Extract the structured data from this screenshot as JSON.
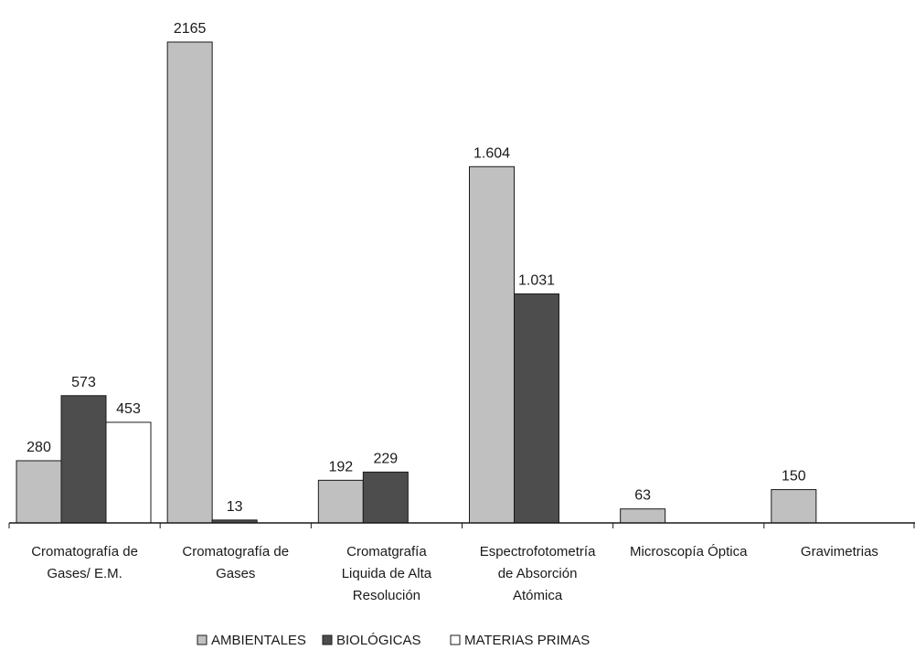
{
  "chart_data": {
    "type": "bar",
    "categories": [
      [
        "Cromatografía de",
        "Gases/ E.M."
      ],
      [
        "Cromatografía de",
        "Gases"
      ],
      [
        "Cromatgrafía",
        "Liquida de Alta",
        "Resolución"
      ],
      [
        "Espectrofotometría",
        "de Absorción",
        "Atómica"
      ],
      [
        "Microscopía Óptica"
      ],
      [
        "Gravimetrias"
      ]
    ],
    "series": [
      {
        "name": "AMBIENTALES",
        "color": "#c0c0c0",
        "values": [
          280,
          2165,
          192,
          1604,
          63,
          150
        ],
        "labels": [
          "280",
          "2165",
          "192",
          "1.604",
          "63",
          "150"
        ]
      },
      {
        "name": "BIOLÓGICAS",
        "color": "#4d4d4d",
        "values": [
          573,
          13,
          229,
          1031,
          null,
          null
        ],
        "labels": [
          "573",
          "13",
          "229",
          "1.031",
          "",
          ""
        ]
      },
      {
        "name": "MATERIAS PRIMAS",
        "color": "#ffffff",
        "values": [
          453,
          null,
          null,
          null,
          null,
          null
        ],
        "labels": [
          "453",
          "",
          "",
          "",
          "",
          ""
        ]
      }
    ],
    "ylim": [
      0,
      2200
    ],
    "grid": false,
    "legend": "bottom"
  }
}
